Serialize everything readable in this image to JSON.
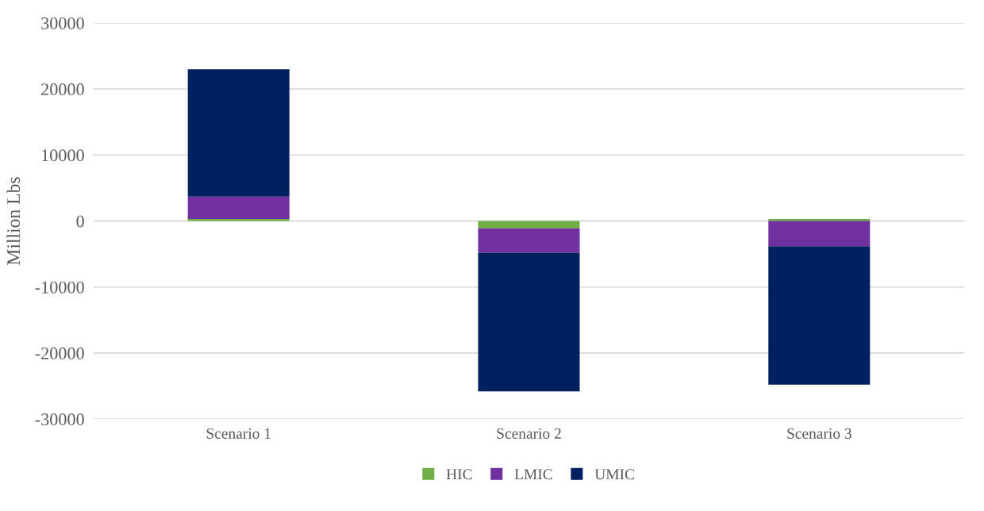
{
  "chart_data": {
    "type": "bar",
    "stacked": true,
    "ylabel": "Million Lbs",
    "categories": [
      "Scenario 1",
      "Scenario 2",
      "Scenario 3"
    ],
    "series": [
      {
        "name": "HIC",
        "color": "#70ad47",
        "values": [
          300,
          -1100,
          300
        ]
      },
      {
        "name": "LMIC",
        "color": "#7030a0",
        "values": [
          3400,
          -3700,
          -3800
        ]
      },
      {
        "name": "UMIC",
        "color": "#002060",
        "values": [
          19300,
          -21000,
          -21000
        ]
      }
    ],
    "ylim": [
      -30000,
      30000
    ],
    "yticks": [
      {
        "value": -30000,
        "label": "-30000"
      },
      {
        "value": -20000,
        "label": "-20000"
      },
      {
        "value": -10000,
        "label": "-10000"
      },
      0,
      10000,
      20000,
      30000
    ],
    "grid": "y",
    "legend": "bottom"
  }
}
